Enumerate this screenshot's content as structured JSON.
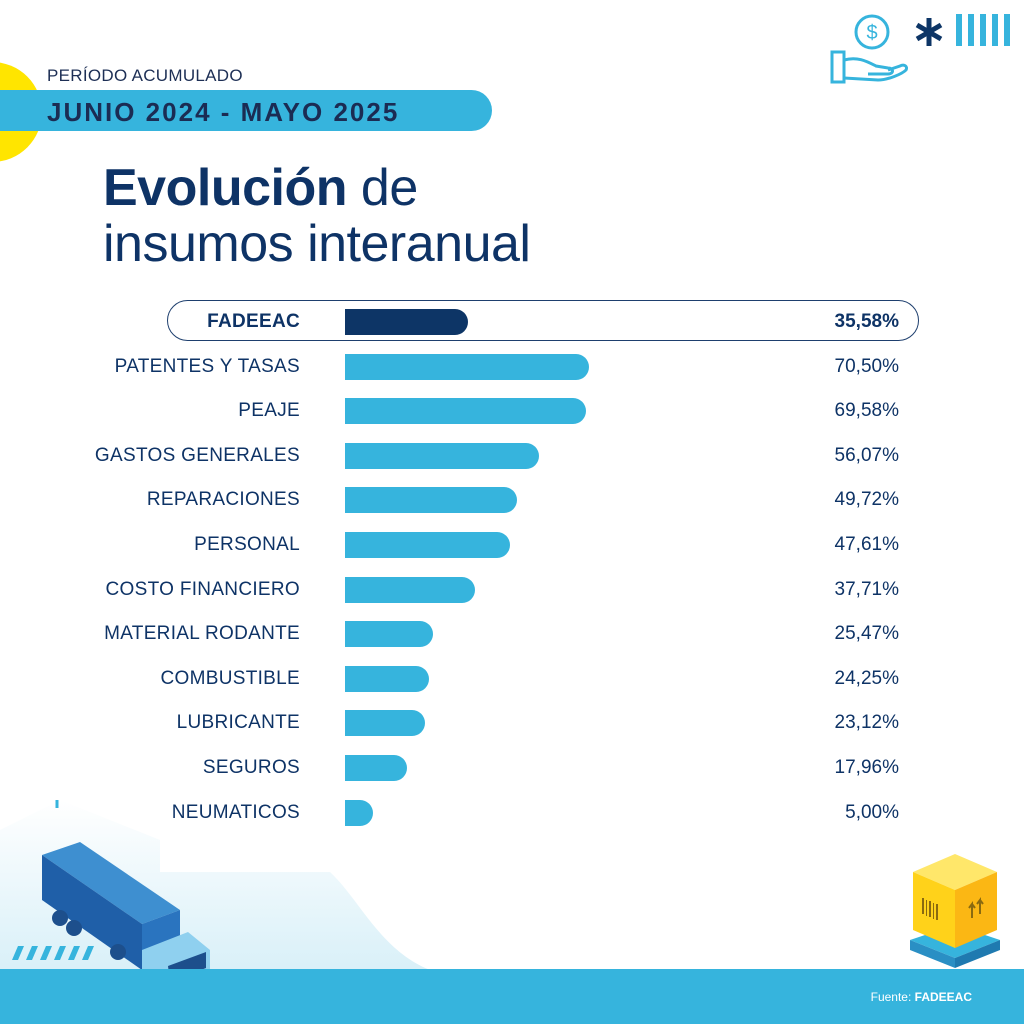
{
  "header": {
    "period_label": "PERÍODO ACUMULADO",
    "period_range": "JUNIO 2024 - MAYO 2025",
    "title_bold": "Evolución",
    "title_rest_line1": " de",
    "title_line2": "insumos interanual"
  },
  "icons": [
    "hand-money-icon",
    "asterisk-icon",
    "stripes-icon",
    "plus-icon",
    "truck-illustration",
    "package-pallet-illustration"
  ],
  "colors": {
    "accent": "#36b4dd",
    "highlight_bar": "#0d3566",
    "text": "#0e3366",
    "yellow": "#ffe500"
  },
  "chart_data": {
    "type": "bar",
    "orientation": "horizontal",
    "title": "Evolución de insumos interanual",
    "subtitle": "PERÍODO ACUMULADO JUNIO 2024 - MAYO 2025",
    "xlabel": "",
    "ylabel": "",
    "unit": "%",
    "xlim": [
      0,
      100
    ],
    "grid": false,
    "legend": "none",
    "highlight": "FADEEAC",
    "categories": [
      "FADEEAC",
      "PATENTES Y TASAS",
      "PEAJE",
      "GASTOS GENERALES",
      "REPARACIONES",
      "PERSONAL",
      "COSTO FINANCIERO",
      "MATERIAL RODANTE",
      "COMBUSTIBLE",
      "LUBRICANTE",
      "SEGUROS",
      "NEUMATICOS"
    ],
    "values": [
      35.58,
      70.5,
      69.58,
      56.07,
      49.72,
      47.61,
      37.71,
      25.47,
      24.25,
      23.12,
      17.96,
      5.0
    ],
    "value_labels": [
      "35,58%",
      "70,50%",
      "69,58%",
      "56,07%",
      "49,72%",
      "47,61%",
      "37,71%",
      "25,47%",
      "24,25%",
      "23,12%",
      "17,96%",
      "5,00%"
    ]
  },
  "footer": {
    "source_label": "Fuente: ",
    "source_name": "FADEEAC"
  }
}
